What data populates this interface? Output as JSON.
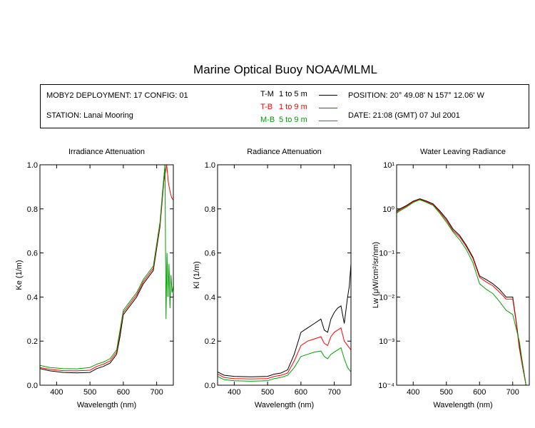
{
  "title": "Marine Optical Buoy NOAA/MLML",
  "info": {
    "deployment": "MOBY2 DEPLOYMENT: 17 CONFIG: 01",
    "station": "STATION: Lanai Mooring",
    "position": "POSITION: 20° 49.08' N   157° 12.06' W",
    "date": "DATE: 21:08 (GMT) 07 Jul 2001"
  },
  "legend": [
    {
      "code": "T-M",
      "range": "1 to 5  m",
      "color": "#000000"
    },
    {
      "code": "T-B",
      "range": "1 to 9  m",
      "color": "#ff0000"
    },
    {
      "code": "M-B",
      "range": "5 to 9  m",
      "color": "#00a000"
    }
  ],
  "chart_data": [
    {
      "type": "line",
      "title": "Irradiance Attenuation",
      "xlabel": "Wavelength (nm)",
      "ylabel": "Ke  (1/m)",
      "xlim": [
        350,
        750
      ],
      "ylim": [
        0,
        1
      ],
      "xticks": [
        400,
        500,
        600,
        700
      ],
      "yticks": [
        0.0,
        0.2,
        0.4,
        0.6,
        0.8,
        1.0
      ],
      "ytick_labels": [
        "0.0",
        "0.2",
        "0.4",
        "0.6",
        "0.8",
        "1.0"
      ],
      "series": [
        {
          "name": "T-M",
          "color": "#000000",
          "x": [
            350,
            380,
            420,
            460,
            500,
            520,
            540,
            560,
            580,
            590,
            600,
            610,
            620,
            640,
            660,
            670,
            690,
            700,
            710,
            720,
            725
          ],
          "y": [
            0.075,
            0.065,
            0.058,
            0.056,
            0.058,
            0.075,
            0.085,
            0.1,
            0.14,
            0.22,
            0.32,
            0.34,
            0.36,
            0.4,
            0.46,
            0.48,
            0.52,
            0.62,
            0.72,
            0.9,
            1.0
          ]
        },
        {
          "name": "T-B",
          "color": "#ff0000",
          "x": [
            350,
            380,
            420,
            460,
            500,
            520,
            540,
            560,
            580,
            590,
            600,
            610,
            620,
            640,
            660,
            670,
            690,
            700,
            710,
            720,
            730,
            735,
            740,
            745,
            750
          ],
          "y": [
            0.08,
            0.072,
            0.066,
            0.065,
            0.068,
            0.085,
            0.095,
            0.11,
            0.15,
            0.24,
            0.33,
            0.35,
            0.37,
            0.41,
            0.47,
            0.49,
            0.53,
            0.63,
            0.73,
            0.91,
            1.0,
            0.92,
            0.88,
            0.85,
            0.84
          ]
        },
        {
          "name": "M-B",
          "color": "#00a000",
          "x": [
            350,
            380,
            420,
            460,
            500,
            520,
            540,
            560,
            580,
            590,
            600,
            610,
            620,
            640,
            660,
            670,
            690,
            700,
            710,
            720,
            725,
            728,
            731,
            734,
            737,
            740,
            743,
            746,
            750
          ],
          "y": [
            0.09,
            0.08,
            0.075,
            0.074,
            0.08,
            0.095,
            0.105,
            0.12,
            0.16,
            0.25,
            0.34,
            0.36,
            0.38,
            0.42,
            0.48,
            0.5,
            0.54,
            0.64,
            0.74,
            0.92,
            1.0,
            0.3,
            0.6,
            0.4,
            0.55,
            0.35,
            0.5,
            0.42,
            0.45
          ]
        }
      ]
    },
    {
      "type": "line",
      "title": "Radiance Attenuation",
      "xlabel": "Wavelength (nm)",
      "ylabel": "Kl  (1/m)",
      "xlim": [
        350,
        750
      ],
      "ylim": [
        0,
        1
      ],
      "xticks": [
        400,
        500,
        600,
        700
      ],
      "yticks": [
        0.0,
        0.2,
        0.4,
        0.6,
        0.8,
        1.0
      ],
      "ytick_labels": [
        "0.0",
        "0.2",
        "0.4",
        "0.6",
        "0.8",
        "1.0"
      ],
      "series": [
        {
          "name": "T-M",
          "color": "#000000",
          "x": [
            350,
            370,
            400,
            450,
            500,
            520,
            540,
            560,
            580,
            600,
            620,
            640,
            660,
            670,
            680,
            690,
            700,
            710,
            720,
            730,
            740,
            745,
            750
          ],
          "y": [
            0.06,
            0.045,
            0.04,
            0.038,
            0.04,
            0.05,
            0.055,
            0.07,
            0.14,
            0.24,
            0.26,
            0.28,
            0.3,
            0.25,
            0.24,
            0.3,
            0.33,
            0.35,
            0.36,
            0.28,
            0.4,
            0.45,
            0.55
          ]
        },
        {
          "name": "T-B",
          "color": "#ff0000",
          "x": [
            350,
            370,
            400,
            450,
            500,
            520,
            540,
            560,
            580,
            600,
            620,
            640,
            660,
            670,
            680,
            690,
            700,
            710,
            720,
            730,
            740,
            750
          ],
          "y": [
            0.05,
            0.035,
            0.03,
            0.028,
            0.03,
            0.04,
            0.045,
            0.055,
            0.11,
            0.18,
            0.2,
            0.21,
            0.22,
            0.19,
            0.18,
            0.22,
            0.24,
            0.25,
            0.26,
            0.2,
            0.18,
            0.16
          ]
        },
        {
          "name": "M-B",
          "color": "#00a000",
          "x": [
            350,
            370,
            400,
            450,
            500,
            520,
            540,
            560,
            580,
            600,
            620,
            640,
            660,
            670,
            680,
            690,
            700,
            710,
            720,
            730,
            740,
            750
          ],
          "y": [
            0.04,
            0.025,
            0.02,
            0.018,
            0.02,
            0.03,
            0.035,
            0.045,
            0.08,
            0.13,
            0.14,
            0.15,
            0.155,
            0.13,
            0.12,
            0.14,
            0.15,
            0.16,
            0.17,
            0.12,
            0.08,
            0.06
          ]
        }
      ]
    },
    {
      "type": "line",
      "title": "Water Leaving Radiance",
      "xlabel": "Wavelength (nm)",
      "ylabel": "Lw  (μW/cm²/sr/nm)",
      "xlim": [
        350,
        750
      ],
      "ylim": [
        0.0001,
        10
      ],
      "yscale": "log",
      "xticks": [
        400,
        500,
        600,
        700
      ],
      "yticks": [
        10,
        1,
        0.1,
        0.01,
        0.001,
        0.0001
      ],
      "ytick_labels": [
        "10¹",
        "10⁰",
        "10⁻¹",
        "10⁻²",
        "10⁻³",
        "10⁻⁴"
      ],
      "series": [
        {
          "name": "T-M",
          "color": "#000000",
          "x": [
            350,
            360,
            380,
            400,
            420,
            440,
            460,
            480,
            500,
            520,
            540,
            560,
            580,
            600,
            620,
            640,
            660,
            680,
            700,
            710,
            720,
            730,
            740
          ],
          "y": [
            0.9,
            1.0,
            1.2,
            1.5,
            1.7,
            1.5,
            1.3,
            0.9,
            0.6,
            0.35,
            0.25,
            0.15,
            0.08,
            0.03,
            0.025,
            0.02,
            0.015,
            0.01,
            0.01,
            0.003,
            0.0008,
            0.0003,
            0.0001
          ]
        },
        {
          "name": "T-B",
          "color": "#ff0000",
          "x": [
            350,
            360,
            380,
            400,
            420,
            440,
            460,
            480,
            500,
            520,
            540,
            560,
            580,
            600,
            620,
            640,
            660,
            680,
            700,
            710,
            720,
            730,
            740
          ],
          "y": [
            0.85,
            0.95,
            1.15,
            1.45,
            1.65,
            1.45,
            1.25,
            0.85,
            0.55,
            0.32,
            0.23,
            0.14,
            0.075,
            0.028,
            0.022,
            0.018,
            0.013,
            0.009,
            0.009,
            0.0028,
            0.0007,
            0.00025,
            0.0001
          ]
        },
        {
          "name": "M-B",
          "color": "#00a000",
          "x": [
            350,
            360,
            380,
            400,
            420,
            440,
            460,
            480,
            500,
            520,
            540,
            560,
            580,
            600,
            620,
            640,
            660,
            680,
            700,
            720,
            730,
            740
          ],
          "y": [
            0.8,
            0.9,
            1.1,
            1.4,
            1.6,
            1.4,
            1.2,
            0.8,
            0.5,
            0.3,
            0.2,
            0.12,
            0.06,
            0.02,
            0.015,
            0.012,
            0.008,
            0.005,
            0.004,
            0.001,
            0.0003,
            0.0001
          ]
        }
      ]
    }
  ]
}
